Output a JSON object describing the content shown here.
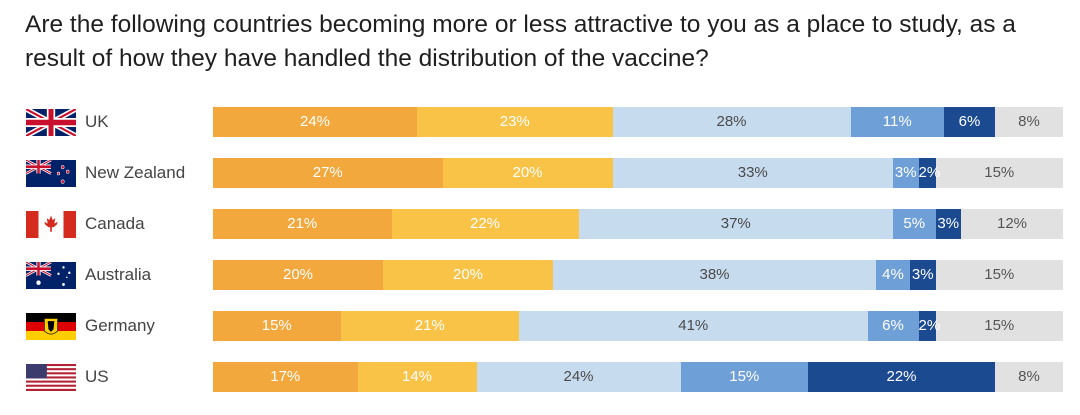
{
  "title": "Are the following countries becoming more or less attractive to you as a place to study, as a result of how they have handled the distribution of the vaccine?",
  "colors": {
    "seg1_shade": [
      "#f2a33a",
      "#efa640"
    ],
    "seg1": "#f3a83d",
    "seg2": "#f8c347",
    "seg3": "#c7dbee",
    "seg4": "#6f9fd7",
    "seg5": "#1c4a91",
    "seg6": "#e1e1e1"
  },
  "chart_data": {
    "type": "bar",
    "orientation": "horizontal",
    "stacked": true,
    "categories": [
      "UK",
      "New Zealand",
      "Canada",
      "Australia",
      "Germany",
      "US"
    ],
    "series": [
      {
        "values": [
          24,
          27,
          21,
          20,
          15,
          17
        ],
        "labels": [
          "24%",
          "27%",
          "21%",
          "20%",
          "15%",
          "17%"
        ],
        "color": "#f3a83d"
      },
      {
        "values": [
          23,
          20,
          22,
          20,
          21,
          14
        ],
        "labels": [
          "23%",
          "20%",
          "22%",
          "20%",
          "21%",
          "14%"
        ],
        "color": "#f8c347"
      },
      {
        "values": [
          28,
          33,
          37,
          38,
          41,
          24
        ],
        "labels": [
          "28%",
          "33%",
          "37%",
          "38%",
          "41%",
          "24%"
        ],
        "color": "#c7dbee"
      },
      {
        "values": [
          11,
          3,
          5,
          4,
          6,
          15
        ],
        "labels": [
          "11%",
          "3%",
          "5%",
          "4%",
          "6%",
          "15%"
        ],
        "color": "#6f9fd7"
      },
      {
        "values": [
          6,
          2,
          3,
          3,
          2,
          22
        ],
        "labels": [
          "6%",
          "2%",
          "3%",
          "3%",
          "2%",
          "22%"
        ],
        "color": "#1c4a91"
      },
      {
        "values": [
          8,
          15,
          12,
          15,
          15,
          8
        ],
        "labels": [
          "8%",
          "15%",
          "12%",
          "15%",
          "15%",
          "8%"
        ],
        "color": "#e1e1e1"
      }
    ],
    "flags": [
      "uk-flag-icon",
      "new-zealand-flag-icon",
      "canada-flag-icon",
      "australia-flag-icon",
      "germany-flag-icon",
      "us-flag-icon"
    ]
  }
}
